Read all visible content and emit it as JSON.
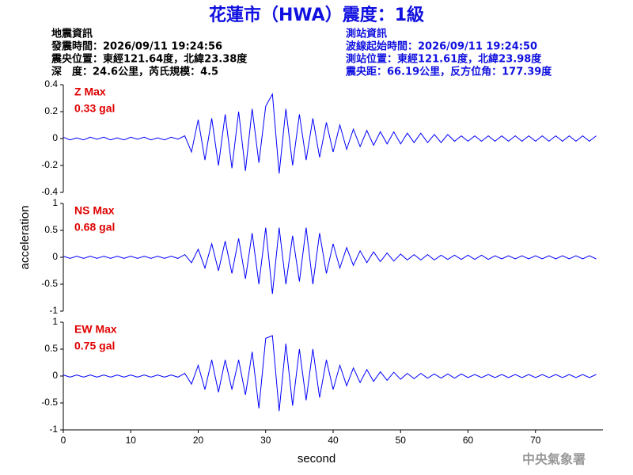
{
  "header": {
    "title": "花蓮市（HWA）震度：1級",
    "left": [
      "地震資訊",
      "發震時間：2026/09/11 19:24:56",
      "震央位置：東經121.64度，北緯23.38度",
      "深　度：24.6公里，芮氏規模：4.5"
    ],
    "right": [
      "測站資訊",
      "波線起始時間：2026/09/11 19:24:50",
      "測站位置：東經121.61度，北緯23.98度",
      "震央距：66.19公里，反方位角：177.39度"
    ],
    "footer": "中央氣象署"
  },
  "chart_data": {
    "type": "line",
    "x_label": "second",
    "y_label": "acceleration",
    "xlim": [
      0,
      80
    ],
    "xticks": [
      0,
      10,
      20,
      30,
      40,
      50,
      60,
      70
    ],
    "x": [
      0,
      1,
      2,
      3,
      4,
      5,
      6,
      7,
      8,
      9,
      10,
      11,
      12,
      13,
      14,
      15,
      16,
      17,
      18,
      19,
      20,
      21,
      22,
      23,
      24,
      25,
      26,
      27,
      28,
      29,
      30,
      31,
      32,
      33,
      34,
      35,
      36,
      37,
      38,
      39,
      40,
      41,
      42,
      43,
      44,
      45,
      46,
      47,
      48,
      49,
      50,
      51,
      52,
      53,
      54,
      55,
      56,
      57,
      58,
      59,
      60,
      61,
      62,
      63,
      64,
      65,
      66,
      67,
      68,
      69,
      70,
      71,
      72,
      73,
      74,
      75,
      76,
      77,
      78,
      79
    ],
    "panels": [
      {
        "name": "Z Max",
        "annotation": "0.33 gal",
        "color": "#0000ff",
        "ylim": [
          -0.4,
          0.4
        ],
        "yticks": [
          -0.4,
          -0.2,
          0,
          0.2,
          0.4
        ],
        "values": [
          0.01,
          -0.01,
          0.005,
          -0.01,
          0.01,
          -0.005,
          0.01,
          -0.01,
          0.005,
          -0.01,
          0.01,
          -0.005,
          0.01,
          -0.01,
          0.005,
          -0.01,
          0.01,
          -0.005,
          0.02,
          -0.1,
          0.14,
          -0.16,
          0.15,
          -0.2,
          0.18,
          -0.22,
          0.2,
          -0.24,
          0.22,
          -0.18,
          0.24,
          0.33,
          -0.26,
          0.22,
          -0.2,
          0.18,
          -0.16,
          0.15,
          -0.14,
          0.12,
          -0.1,
          0.1,
          -0.08,
          0.07,
          -0.06,
          0.06,
          -0.05,
          0.05,
          -0.04,
          0.05,
          -0.04,
          0.04,
          -0.03,
          0.04,
          -0.03,
          0.03,
          -0.03,
          0.03,
          -0.02,
          0.02,
          -0.02,
          0.02,
          -0.02,
          0.02,
          -0.02,
          0.02,
          -0.02,
          0.02,
          -0.02,
          0.02,
          -0.02,
          0.02,
          -0.02,
          0.02,
          -0.02,
          0.02,
          -0.02,
          0.02,
          -0.02,
          0.02
        ]
      },
      {
        "name": "NS Max",
        "annotation": "0.68 gal",
        "color": "#0000ff",
        "ylim": [
          -1,
          1
        ],
        "yticks": [
          -1,
          -0.5,
          0,
          0.5,
          1
        ],
        "values": [
          0.02,
          -0.02,
          0.02,
          -0.02,
          0.02,
          -0.02,
          0.02,
          -0.02,
          0.02,
          -0.02,
          0.02,
          -0.02,
          0.02,
          -0.02,
          0.02,
          -0.02,
          0.02,
          -0.02,
          0.05,
          -0.1,
          0.15,
          -0.2,
          0.25,
          -0.25,
          0.3,
          -0.3,
          0.35,
          -0.4,
          0.45,
          -0.5,
          0.55,
          -0.68,
          0.55,
          -0.5,
          0.4,
          -0.45,
          0.55,
          -0.5,
          0.45,
          -0.3,
          0.25,
          -0.2,
          0.18,
          -0.15,
          0.12,
          -0.1,
          0.1,
          -0.08,
          0.08,
          -0.07,
          0.06,
          -0.05,
          0.05,
          -0.05,
          0.05,
          -0.05,
          0.04,
          -0.04,
          0.04,
          -0.04,
          0.04,
          -0.04,
          0.04,
          -0.04,
          0.03,
          -0.03,
          0.03,
          -0.03,
          0.03,
          -0.03,
          0.03,
          -0.03,
          0.03,
          -0.03,
          0.03,
          -0.03,
          0.03,
          -0.03,
          0.03,
          -0.03
        ]
      },
      {
        "name": "EW Max",
        "annotation": "0.75 gal",
        "color": "#0000ff",
        "ylim": [
          -1,
          1
        ],
        "yticks": [
          -1,
          -0.5,
          0,
          0.5,
          1
        ],
        "values": [
          0.02,
          -0.02,
          0.02,
          -0.02,
          0.02,
          -0.02,
          0.02,
          -0.02,
          0.02,
          -0.02,
          0.02,
          -0.02,
          0.02,
          -0.02,
          0.02,
          -0.02,
          0.02,
          -0.02,
          0.05,
          -0.15,
          0.2,
          -0.25,
          0.3,
          -0.3,
          0.3,
          -0.25,
          0.3,
          -0.35,
          0.45,
          -0.6,
          0.7,
          0.75,
          -0.65,
          0.6,
          -0.55,
          0.5,
          -0.45,
          0.5,
          -0.4,
          0.3,
          -0.25,
          0.2,
          -0.18,
          0.15,
          -0.12,
          0.12,
          -0.1,
          0.08,
          -0.08,
          0.07,
          -0.06,
          0.05,
          -0.05,
          0.05,
          -0.04,
          0.04,
          -0.04,
          0.04,
          -0.04,
          0.04,
          -0.03,
          0.03,
          -0.03,
          0.03,
          -0.03,
          0.03,
          -0.03,
          0.03,
          -0.03,
          0.03,
          -0.03,
          0.03,
          -0.03,
          0.03,
          -0.03,
          0.03,
          -0.03,
          0.03,
          -0.03,
          0.03
        ]
      }
    ]
  }
}
